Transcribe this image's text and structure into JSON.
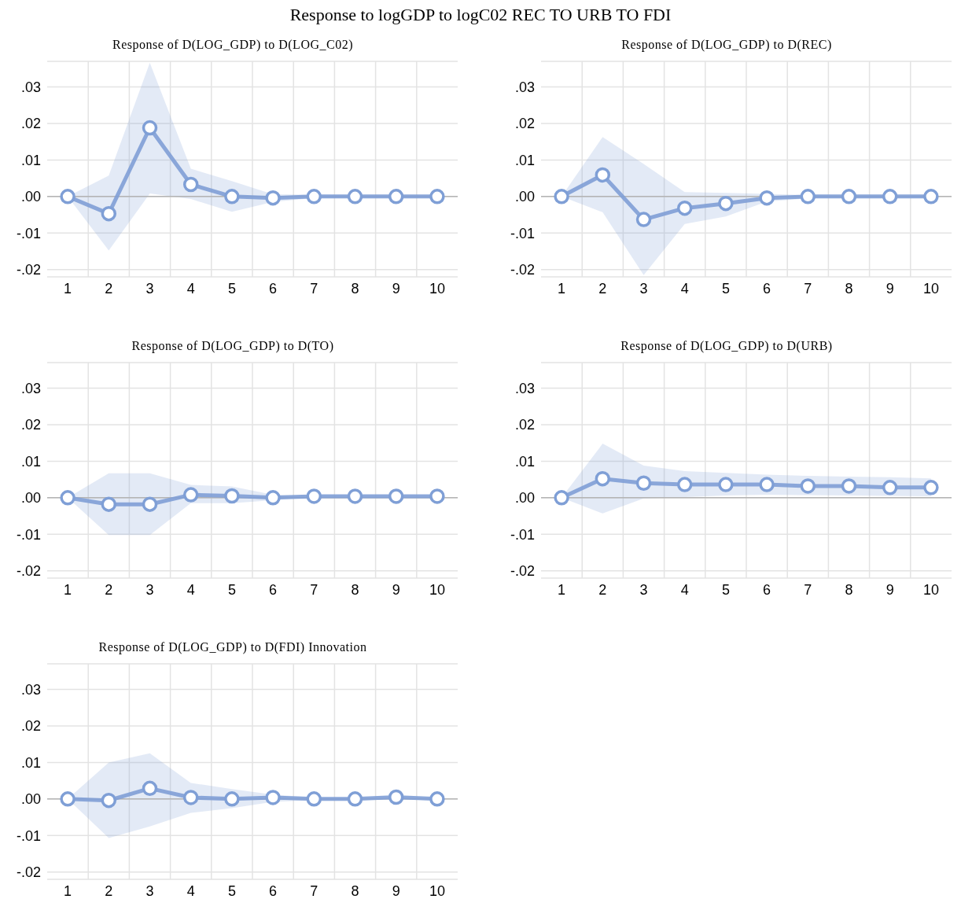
{
  "chart_data": [
    {
      "type": "other",
      "title": "Response to logGDP to logC02 REC TO URB TO FDI"
    },
    {
      "type": "line",
      "title": "Response of D(LOG_GDP) to D(LOG_C02)",
      "categories": [
        "1",
        "2",
        "3",
        "4",
        "5",
        "6",
        "7",
        "8",
        "9",
        "10"
      ],
      "ylim": [
        -0.022,
        0.037
      ],
      "yticks": [
        {
          "value": -0.02,
          "label": "-.02"
        },
        {
          "value": -0.01,
          "label": "-.01"
        },
        {
          "value": 0,
          "label": ".00"
        },
        {
          "value": 0.01,
          "label": ".01"
        },
        {
          "value": 0.02,
          "label": ".02"
        },
        {
          "value": 0.03,
          "label": ".03"
        }
      ],
      "grid": true,
      "marker": "circle",
      "line_style": "solid",
      "ref_lines": [
        {
          "axis": "y",
          "value": 0,
          "color": "#b4b4b4"
        }
      ],
      "series": [
        {
          "color": "#7f9fd6",
          "values": [
            0,
            -0.0047,
            0.0188,
            0.0033,
            0,
            -0.0004,
            0,
            0,
            0,
            0
          ],
          "lower": [
            0,
            -0.0148,
            0.0008,
            -0.0007,
            -0.0042,
            -0.0015,
            -0.0004,
            -0.0002,
            -0.0002,
            -0.0002
          ],
          "upper": [
            0,
            0.0057,
            0.0366,
            0.0076,
            0.0042,
            0.0006,
            0.0005,
            0.0003,
            0.0003,
            0.0003
          ]
        }
      ]
    },
    {
      "type": "line",
      "title": "Response of D(LOG_GDP) to D(REC)",
      "categories": [
        "1",
        "2",
        "3",
        "4",
        "5",
        "6",
        "7",
        "8",
        "9",
        "10"
      ],
      "ylim": [
        -0.022,
        0.037
      ],
      "yticks": [
        {
          "value": -0.02,
          "label": "-.02"
        },
        {
          "value": -0.01,
          "label": "-.01"
        },
        {
          "value": 0,
          "label": ".00"
        },
        {
          "value": 0.01,
          "label": ".01"
        },
        {
          "value": 0.02,
          "label": ".02"
        },
        {
          "value": 0.03,
          "label": ".03"
        }
      ],
      "grid": true,
      "marker": "circle",
      "line_style": "solid",
      "ref_lines": [
        {
          "axis": "y",
          "value": 0,
          "color": "#b4b4b4"
        }
      ],
      "series": [
        {
          "color": "#7f9fd6",
          "values": [
            0,
            0.0059,
            -0.0063,
            -0.0032,
            -0.0019,
            -0.0004,
            0,
            0,
            0,
            0
          ],
          "lower": [
            0,
            -0.0043,
            -0.0215,
            -0.0075,
            -0.0055,
            -0.0014,
            -0.0005,
            -0.0002,
            -0.0002,
            -0.0002
          ],
          "upper": [
            0,
            0.0163,
            0.0089,
            0.0012,
            0.001,
            0.0007,
            0.0004,
            0.0002,
            0.0002,
            0.0002
          ]
        }
      ]
    },
    {
      "type": "line",
      "title": "Response of D(LOG_GDP) to D(TO)",
      "categories": [
        "1",
        "2",
        "3",
        "4",
        "5",
        "6",
        "7",
        "8",
        "9",
        "10"
      ],
      "ylim": [
        -0.022,
        0.037
      ],
      "yticks": [
        {
          "value": -0.02,
          "label": "-.02"
        },
        {
          "value": -0.01,
          "label": "-.01"
        },
        {
          "value": 0,
          "label": ".00"
        },
        {
          "value": 0.01,
          "label": ".01"
        },
        {
          "value": 0.02,
          "label": ".02"
        },
        {
          "value": 0.03,
          "label": ".03"
        }
      ],
      "grid": true,
      "marker": "circle",
      "line_style": "solid",
      "ref_lines": [
        {
          "axis": "y",
          "value": 0,
          "color": "#b4b4b4"
        }
      ],
      "series": [
        {
          "color": "#7f9fd6",
          "values": [
            0,
            -0.0018,
            -0.0018,
            0.0008,
            0.0005,
            0,
            0.0004,
            0.0004,
            0.0004,
            0.0004
          ],
          "lower": [
            0,
            -0.0102,
            -0.0102,
            -0.0015,
            -0.0015,
            -0.0007,
            0.0002,
            0.0003,
            0.0003,
            0.0003
          ],
          "upper": [
            0,
            0.0067,
            0.0067,
            0.0035,
            0.0031,
            0.0008,
            0.0006,
            0.0005,
            0.0005,
            0.0005
          ]
        }
      ]
    },
    {
      "type": "line",
      "title": "Response of D(LOG_GDP) to D(URB)",
      "categories": [
        "1",
        "2",
        "3",
        "4",
        "5",
        "6",
        "7",
        "8",
        "9",
        "10"
      ],
      "ylim": [
        -0.022,
        0.037
      ],
      "yticks": [
        {
          "value": -0.02,
          "label": "-.02"
        },
        {
          "value": -0.01,
          "label": "-.01"
        },
        {
          "value": 0,
          "label": ".00"
        },
        {
          "value": 0.01,
          "label": ".01"
        },
        {
          "value": 0.02,
          "label": ".02"
        },
        {
          "value": 0.03,
          "label": ".03"
        }
      ],
      "grid": true,
      "marker": "circle",
      "line_style": "solid",
      "ref_lines": [
        {
          "axis": "y",
          "value": 0,
          "color": "#b4b4b4"
        }
      ],
      "series": [
        {
          "color": "#7f9fd6",
          "values": [
            0,
            0.0052,
            0.004,
            0.0036,
            0.0036,
            0.0036,
            0.0032,
            0.0032,
            0.0028,
            0.0028
          ],
          "lower": [
            0,
            -0.0043,
            -0.0002,
            0.0002,
            0.0006,
            0.0008,
            0.0007,
            0.0006,
            0.0005,
            0.0004
          ],
          "upper": [
            0,
            0.0148,
            0.0088,
            0.0073,
            0.0068,
            0.0063,
            0.006,
            0.0058,
            0.0056,
            0.0053
          ]
        }
      ]
    },
    {
      "type": "line",
      "title": "Response of D(LOG_GDP) to D(FDI) Innovation",
      "categories": [
        "1",
        "2",
        "3",
        "4",
        "5",
        "6",
        "7",
        "8",
        "9",
        "10"
      ],
      "ylim": [
        -0.022,
        0.037
      ],
      "yticks": [
        {
          "value": -0.02,
          "label": "-.02"
        },
        {
          "value": -0.01,
          "label": "-.01"
        },
        {
          "value": 0,
          "label": ".00"
        },
        {
          "value": 0.01,
          "label": ".01"
        },
        {
          "value": 0.02,
          "label": ".02"
        },
        {
          "value": 0.03,
          "label": ".03"
        }
      ],
      "grid": true,
      "marker": "circle",
      "line_style": "solid",
      "ref_lines": [
        {
          "axis": "y",
          "value": 0,
          "color": "#b4b4b4"
        }
      ],
      "series": [
        {
          "color": "#7f9fd6",
          "values": [
            0,
            -0.0004,
            0.0029,
            0.0004,
            0,
            0.0004,
            0,
            0,
            0.0005,
            0
          ],
          "lower": [
            0,
            -0.0107,
            -0.0075,
            -0.0038,
            -0.0025,
            -0.0008,
            -0.0003,
            -0.0003,
            0.0002,
            -0.0002
          ],
          "upper": [
            0,
            0.01,
            0.0125,
            0.0044,
            0.0027,
            0.0012,
            0.0004,
            0.0003,
            0.0007,
            0.0002
          ]
        }
      ]
    }
  ]
}
